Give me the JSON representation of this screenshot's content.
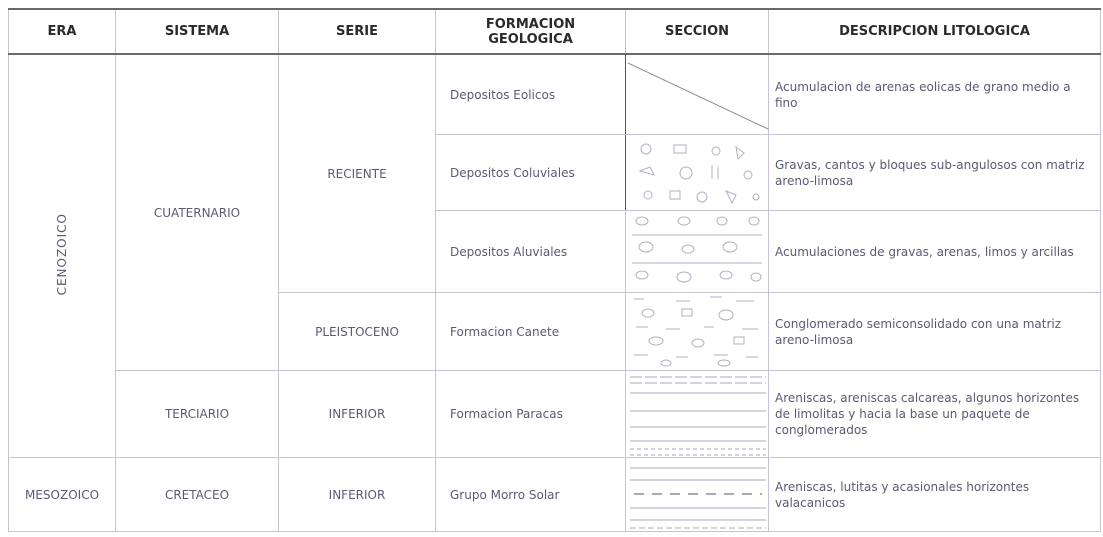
{
  "table": {
    "columns": [
      "ERA",
      "SISTEMA",
      "SERIE",
      "FORMACION GEOLOGICA",
      "SECCION",
      "DESCRIPCION LITOLOGICA"
    ],
    "eras": [
      "CENOZOICO",
      "MESOZOICO"
    ],
    "sistemas": [
      "CUATERNARIO",
      "TERCIARIO",
      "CRETACEO"
    ],
    "series": [
      "RECIENTE",
      "PLEISTOCENO",
      "INFERIOR",
      "INFERIOR"
    ],
    "rows": [
      {
        "formacion": "Depositos Eolicos",
        "descripcion": "Acumulacion de arenas eolicas de grano medio a fino"
      },
      {
        "formacion": "Depositos Coluviales",
        "descripcion": "Gravas, cantos y bloques sub-angulosos con matriz areno-limosa"
      },
      {
        "formacion": "Depositos Aluviales",
        "descripcion": "Acumulaciones de gravas, arenas, limos y arcillas"
      },
      {
        "formacion": "Formacion Canete",
        "descripcion": "Conglomerado semiconsolidado con una matriz areno-limosa"
      },
      {
        "formacion": "Formacion Paracas",
        "descripcion": "Areniscas, areniscas calcareas, algunos horizontes de limolitas y hacia la base un paquete de conglomerados"
      },
      {
        "formacion": "Grupo Morro Solar",
        "descripcion": "Areniscas, lutitas y acasionales horizontes valacanicos"
      }
    ]
  }
}
